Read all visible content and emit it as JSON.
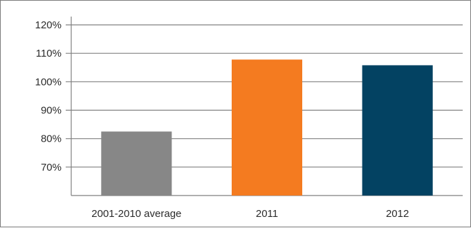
{
  "chart_data": {
    "type": "bar",
    "title": "",
    "xlabel": "",
    "ylabel": "",
    "categories": [
      "2001-2010 average",
      "2011",
      "2012"
    ],
    "values": [
      82.5,
      107.8,
      105.8
    ],
    "bar_colors": [
      "#878787",
      "#f47b20",
      "#034262"
    ],
    "ylim": [
      60,
      120
    ],
    "yticks": [
      70,
      80,
      90,
      100,
      110,
      120
    ],
    "ytick_labels": [
      "70%",
      "80%",
      "90%",
      "100%",
      "110%",
      "120%"
    ],
    "grid": true,
    "grid_color": "#7f7f7f",
    "legend": "none"
  }
}
